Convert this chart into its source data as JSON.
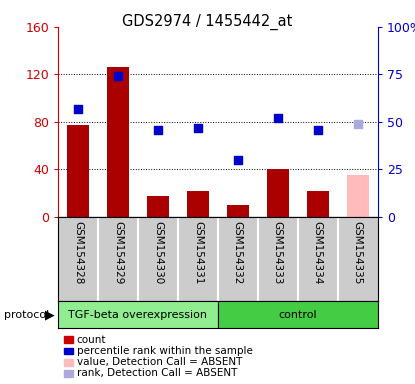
{
  "title": "GDS2974 / 1455442_at",
  "samples": [
    "GSM154328",
    "GSM154329",
    "GSM154330",
    "GSM154331",
    "GSM154332",
    "GSM154333",
    "GSM154334",
    "GSM154335"
  ],
  "bar_values": [
    77,
    126,
    18,
    22,
    10,
    40,
    22,
    35
  ],
  "bar_colors": [
    "#aa0000",
    "#aa0000",
    "#aa0000",
    "#aa0000",
    "#aa0000",
    "#aa0000",
    "#aa0000",
    "#ffbbbb"
  ],
  "dot_values": [
    57,
    74,
    46,
    47,
    30,
    52,
    46,
    49
  ],
  "dot_colors": [
    "#0000cc",
    "#0000cc",
    "#0000cc",
    "#0000cc",
    "#0000cc",
    "#0000cc",
    "#0000cc",
    "#aaaadd"
  ],
  "left_ylim": [
    0,
    160
  ],
  "left_yticks": [
    0,
    40,
    80,
    120,
    160
  ],
  "left_yticklabels": [
    "0",
    "40",
    "80",
    "120",
    "160"
  ],
  "right_ylim": [
    0,
    100
  ],
  "right_yticks": [
    0,
    25,
    50,
    75,
    100
  ],
  "right_yticklabels": [
    "0",
    "25",
    "50",
    "75",
    "100%"
  ],
  "left_ytick_color": "#cc0000",
  "right_ytick_color": "#0000cc",
  "group1_label": "TGF-beta overexpression",
  "group2_label": "control",
  "group1_count": 4,
  "group2_count": 4,
  "protocol_label": "protocol",
  "group1_color": "#90ee90",
  "group2_color": "#44cc44",
  "legend_items": [
    {
      "label": "count",
      "color": "#cc0000"
    },
    {
      "label": "percentile rank within the sample",
      "color": "#0000cc"
    },
    {
      "label": "value, Detection Call = ABSENT",
      "color": "#ffbbbb"
    },
    {
      "label": "rank, Detection Call = ABSENT",
      "color": "#aaaadd"
    }
  ],
  "bar_width": 0.55,
  "dot_size": 40,
  "label_area_color": "#cccccc",
  "separator_color": "#ffffff"
}
